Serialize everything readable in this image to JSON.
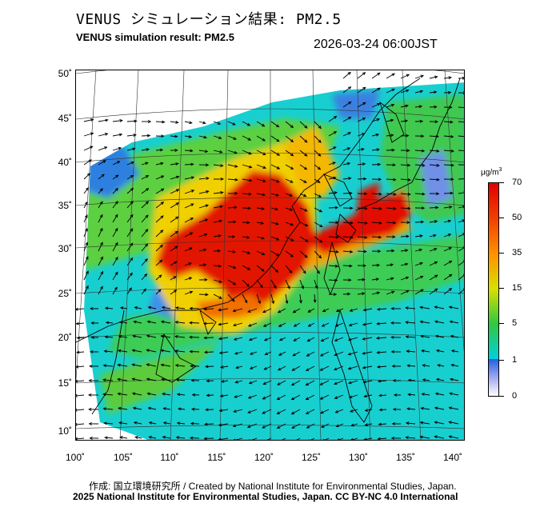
{
  "header": {
    "title_jp": "VENUS シミュレーション結果: PM2.5",
    "title_en": "VENUS simulation result: PM2.5",
    "timestamp": "2026-03-24 06:00JST"
  },
  "map": {
    "lat_labels": [
      "50˚",
      "45˚",
      "40˚",
      "35˚",
      "30˚",
      "25˚",
      "20˚",
      "15˚",
      "10˚"
    ],
    "lon_labels": [
      "100˚",
      "105˚",
      "110˚",
      "115˚",
      "120˚",
      "125˚",
      "130˚",
      "135˚",
      "140˚"
    ],
    "lat_values": [
      50,
      45,
      40,
      35,
      30,
      25,
      20,
      15,
      10
    ],
    "lon_values": [
      100,
      105,
      110,
      115,
      120,
      125,
      130,
      135,
      140
    ],
    "variable": "PM2.5",
    "colors": {
      "background": "#ffffff",
      "coastline": "#000000",
      "wind_vector": "#000000"
    }
  },
  "colorbar": {
    "unit": "μg/m",
    "unit_sup": "3",
    "labels": [
      "70",
      "50",
      "35",
      "15",
      "5",
      "1",
      "0"
    ],
    "stops": [
      {
        "value": 70,
        "color": "#e00000"
      },
      {
        "value": 50,
        "color": "#ff8000"
      },
      {
        "value": 35,
        "color": "#e8e000"
      },
      {
        "value": 15,
        "color": "#30c830"
      },
      {
        "value": 5,
        "color": "#00d8d8"
      },
      {
        "value": 1,
        "color": "#3070e0"
      },
      {
        "value": 0,
        "color": "#ffffff"
      }
    ]
  },
  "footer": {
    "credit": "作成: 国立環境研究所 / Created by National Institute for Environmental Studies, Japan.",
    "copyright": "2025 National Institute for Environmental Studies, Japan. CC BY-NC 4.0 International"
  }
}
